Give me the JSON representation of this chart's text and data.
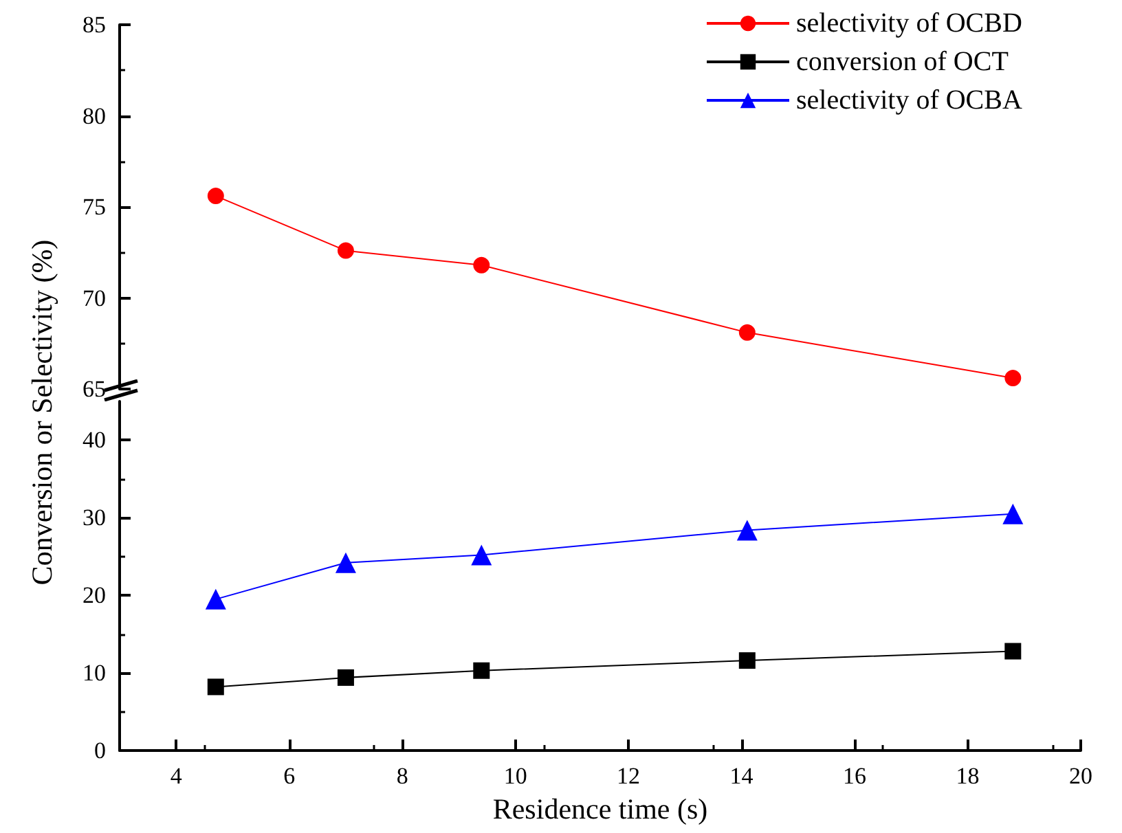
{
  "chart_data": [
    {
      "type": "line",
      "ylabel": "Conversion or Selectivity (%)",
      "x": [
        4.7,
        7.0,
        9.4,
        14.1,
        18.8
      ],
      "xlim": [
        3,
        20
      ],
      "xticks": [
        4,
        6,
        8,
        10,
        12,
        14,
        16,
        18,
        20
      ],
      "ylim": [
        65,
        85
      ],
      "yticks": [
        65,
        70,
        75,
        80,
        85
      ],
      "tick_labels": "y",
      "legend": "top right",
      "grid": false,
      "series": [
        {
          "name": "selectivity of OCBD",
          "color": "#ff0000",
          "marker": "circle",
          "values": [
            75.6,
            72.6,
            71.8,
            68.1,
            65.6
          ]
        }
      ]
    },
    {
      "type": "line",
      "xlabel": "Residence time (s)",
      "x": [
        4.7,
        7.0,
        9.4,
        14.1,
        18.8
      ],
      "xlim": [
        3,
        20
      ],
      "xticks": [
        4,
        6,
        8,
        10,
        12,
        14,
        16,
        18,
        20
      ],
      "ylim": [
        0,
        45
      ],
      "yticks": [
        0,
        10,
        20,
        30,
        40
      ],
      "legend": "top right",
      "grid": false,
      "series": [
        {
          "name": "conversion of OCT",
          "color": "#000000",
          "marker": "square",
          "values": [
            8.2,
            9.4,
            10.3,
            11.6,
            12.8
          ]
        },
        {
          "name": "selectivity of OCBA",
          "color": "#0000ff",
          "marker": "triangle",
          "values": [
            19.5,
            24.2,
            25.2,
            28.4,
            30.5
          ]
        }
      ]
    }
  ]
}
